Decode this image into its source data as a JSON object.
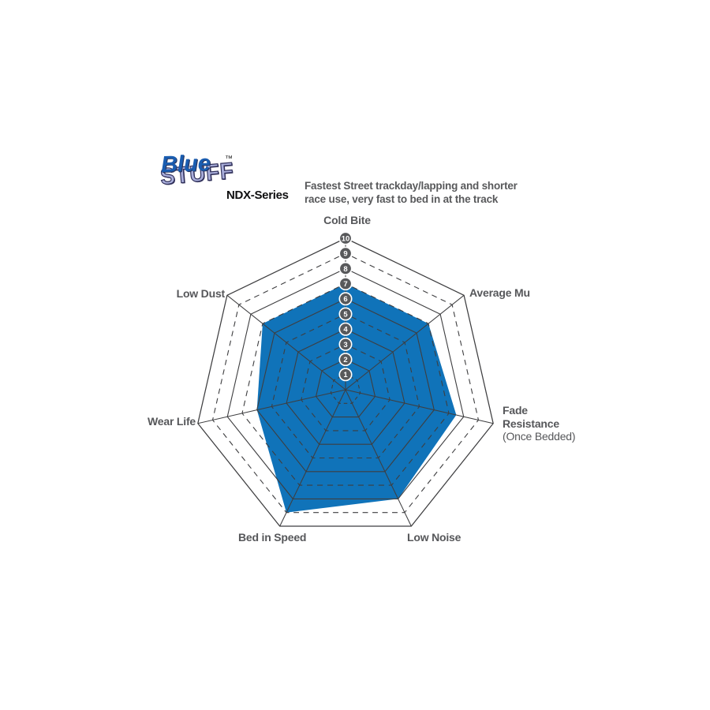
{
  "brand": {
    "logo_line1": "Blue",
    "logo_line2": "STUFF",
    "trademark": "™",
    "series": "NDX-Series"
  },
  "tagline": {
    "line1": "Fastest Street trackday/lapping and shorter",
    "line2": "race use, very fast to bed in at the track"
  },
  "axis_labels": {
    "cold_bite": "Cold Bite",
    "average_mu": "Average Mu",
    "fade_line1": "Fade",
    "fade_line2": "Resistance",
    "fade_line3": "(Once Bedded)",
    "low_noise": "Low Noise",
    "bed_in_speed": "Bed in Speed",
    "wear_life": "Wear Life",
    "low_dust": "Low Dust"
  },
  "colors": {
    "fill_blue": "#1073B9",
    "grid_line": "#3E3E40",
    "badge_bg": "#58595B",
    "badge_text": "#FFFFFF",
    "label_text": "#56575A",
    "tagline_text": "#58595B",
    "logo_blue": "#1A5DB0",
    "logo_lavender": "#A9AEDB",
    "series_text": "#0F0F10"
  },
  "chart_data": {
    "type": "radar",
    "title": "BlueStuff NDX-Series brake pad performance",
    "categories": [
      "Cold Bite",
      "Average Mu",
      "Fade Resistance (Once Bedded)",
      "Low Noise",
      "Bed in Speed",
      "Wear Life",
      "Low Dust"
    ],
    "values": [
      7,
      7,
      7.5,
      8,
      9,
      6,
      7
    ],
    "axis_min": 1,
    "axis_max": 10,
    "tick_labels": [
      "1",
      "2",
      "3",
      "4",
      "5",
      "6",
      "7",
      "8",
      "9",
      "10"
    ],
    "rings": {
      "solid": [
        2,
        4,
        6,
        8,
        10
      ],
      "dashed": [
        1,
        3,
        5,
        7,
        9
      ]
    },
    "grid": true,
    "legend": "none",
    "fill_color": "#1073B9"
  }
}
